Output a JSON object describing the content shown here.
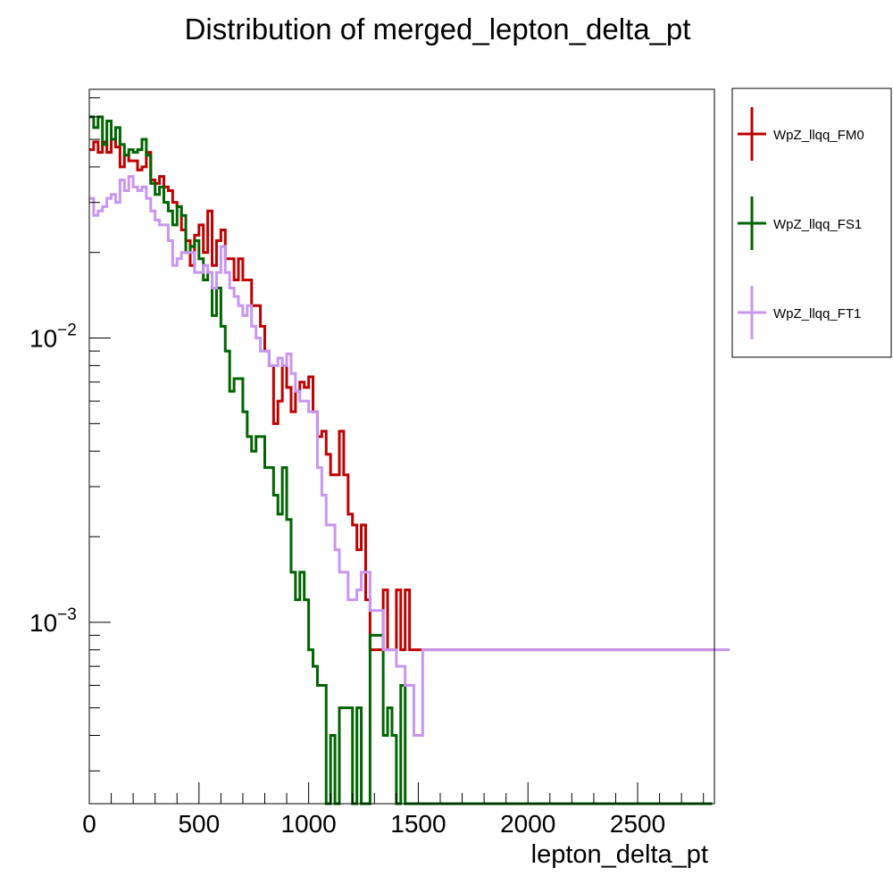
{
  "chart_data": {
    "type": "histogram",
    "title": "Distribution of merged_lepton_delta_pt",
    "xlabel": "lepton_delta_pt",
    "ylabel": "",
    "xlim": [
      0,
      2850
    ],
    "ylim": [
      0.00023,
      0.075
    ],
    "y_scale": "log",
    "grid": false,
    "legend_position": "right",
    "x_ticks": [
      0,
      500,
      1000,
      1500,
      2000,
      2500
    ],
    "x_tick_labels": [
      "0",
      "500",
      "1000",
      "1500",
      "2000",
      "2500"
    ],
    "y_ticks": [
      0.001,
      0.01
    ],
    "y_tick_labels": [
      {
        "base": "10",
        "exp": "−3"
      },
      {
        "base": "10",
        "exp": "−2"
      }
    ],
    "bin_width": 20,
    "series": [
      {
        "name": "WpZ_llqq_FM0",
        "color": "#c00000",
        "values": [
          0.046,
          0.049,
          0.045,
          0.049,
          0.045,
          0.05,
          0.047,
          0.04,
          0.044,
          0.042,
          0.042,
          0.039,
          0.04,
          0.045,
          0.036,
          0.035,
          0.037,
          0.034,
          0.033,
          0.03,
          0.029,
          0.024,
          0.022,
          0.018,
          0.023,
          0.025,
          0.02,
          0.028,
          0.018,
          0.022,
          0.024,
          0.019,
          0.019,
          0.016,
          0.019,
          0.016,
          0.016,
          0.013,
          0.013,
          0.011,
          0.009,
          0.008,
          0.005,
          0.006,
          0.008,
          0.0067,
          0.0055,
          0.0065,
          0.007,
          0.0067,
          0.0073,
          0.0055,
          0.0045,
          0.0047,
          0.0039,
          0.0033,
          0.0033,
          0.0047,
          0.0033,
          0.0024,
          0.0022,
          0.0018,
          0.0022,
          0.0012,
          0.0008,
          0.0008,
          0.0008,
          0.0013,
          0.0008,
          0.0008,
          0.0013,
          0.0008,
          0.0013,
          0.0008,
          0.0008,
          0.0008,
          0.0008,
          0.0008,
          0.0008,
          0.0008,
          0.0008,
          0.0008,
          0.0008,
          0.0008,
          0.0008,
          0.0008,
          0.0008,
          0.0008,
          0.0008,
          0.0008,
          0.0008,
          0.0008,
          0.0008,
          0.0008,
          0.0008,
          0.0008,
          0.0008,
          0.0008,
          0.0008,
          0.0008,
          0.0008,
          0.0008,
          0.0008,
          0.0008,
          0.0008,
          0.0008,
          0.0008,
          0.0008,
          0.0008,
          0.0008,
          0.0008,
          0.0008,
          0.0008,
          0.0008,
          0.0008,
          0.0008,
          0.0008,
          0.0008,
          0.0008,
          0.0008,
          0.0008,
          0.0008,
          0.0008,
          0.0008,
          0.0008,
          0.0008,
          0.0008,
          0.0008,
          0.0008,
          0.0008,
          0.0008,
          0.0008,
          0.0008,
          0.0008,
          0.0008,
          0.0008,
          0.0008,
          0.0008,
          0.0008,
          0.0008,
          0.0008,
          0.0008,
          0.0008
        ]
      },
      {
        "name": "WpZ_llqq_FS1",
        "color": "#006400",
        "values": [
          0.06,
          0.055,
          0.06,
          0.048,
          0.058,
          0.05,
          0.055,
          0.048,
          0.044,
          0.046,
          0.045,
          0.046,
          0.05,
          0.044,
          0.035,
          0.032,
          0.034,
          0.03,
          0.028,
          0.025,
          0.029,
          0.027,
          0.02,
          0.021,
          0.022,
          0.019,
          0.016,
          0.017,
          0.012,
          0.015,
          0.011,
          0.009,
          0.0065,
          0.0072,
          0.0072,
          0.0055,
          0.0045,
          0.004,
          0.0045,
          0.0045,
          0.0035,
          0.0035,
          0.0028,
          0.0024,
          0.0035,
          0.0023,
          0.0015,
          0.0012,
          0.0015,
          0.0012,
          0.0008,
          0.0007,
          0.0006,
          0.0006,
          0.00023,
          0.0004,
          0.00023,
          0.0005,
          0.0005,
          0.0005,
          0.00023,
          0.0005,
          0.00023,
          0.00023,
          0.0009,
          0.0009,
          0.0009,
          0.0004,
          0.0005,
          0.0004,
          0.00023,
          0.0006,
          0.00023,
          0.00023,
          0.00023,
          0.00023,
          0.00023,
          0.00023,
          0.00023,
          0.00023,
          0.00023,
          0.00023,
          0.00023,
          0.00023,
          0.00023,
          0.00023,
          0.00023,
          0.00023,
          0.00023,
          0.00023,
          0.00023,
          0.00023,
          0.00023,
          0.00023,
          0.00023,
          0.00023,
          0.00023,
          0.00023,
          0.00023,
          0.00023,
          0.00023,
          0.00023,
          0.00023,
          0.00023,
          0.00023,
          0.00023,
          0.00023,
          0.00023,
          0.00023,
          0.00023,
          0.00023,
          0.00023,
          0.00023,
          0.00023,
          0.00023,
          0.00023,
          0.00023,
          0.00023,
          0.00023,
          0.00023,
          0.00023,
          0.00023,
          0.00023,
          0.00023,
          0.00023,
          0.00023,
          0.00023,
          0.00023,
          0.00023,
          0.00023,
          0.00023,
          0.00023,
          0.00023,
          0.00023,
          0.00023,
          0.00023,
          0.00023,
          0.00023,
          0.00023,
          0.00023,
          0.00023,
          0.00023
        ]
      },
      {
        "name": "WpZ_llqq_FT1",
        "color": "#c896f0",
        "values": [
          0.031,
          0.027,
          0.028,
          0.029,
          0.031,
          0.032,
          0.03,
          0.036,
          0.033,
          0.037,
          0.034,
          0.033,
          0.034,
          0.031,
          0.028,
          0.026,
          0.025,
          0.025,
          0.022,
          0.018,
          0.019,
          0.02,
          0.02,
          0.02,
          0.017,
          0.017,
          0.018,
          0.017,
          0.015,
          0.017,
          0.021,
          0.017,
          0.015,
          0.014,
          0.013,
          0.012,
          0.013,
          0.011,
          0.01,
          0.009,
          0.009,
          0.008,
          0.008,
          0.0085,
          0.008,
          0.0088,
          0.0075,
          0.0065,
          0.006,
          0.006,
          0.0055,
          0.0055,
          0.0035,
          0.0028,
          0.0022,
          0.0022,
          0.0018,
          0.0015,
          0.0015,
          0.0012,
          0.0012,
          0.0013,
          0.0015,
          0.0015,
          0.0011,
          0.0011,
          0.0011,
          0.0008,
          0.0008,
          0.0008,
          0.0007,
          0.0007,
          0.0006,
          0.0006,
          0.0004,
          0.0004,
          0.0008,
          0.0008,
          0.0008,
          0.0008,
          0.0008,
          0.0008,
          0.0008,
          0.0008,
          0.0008,
          0.0008,
          0.0008,
          0.0008,
          0.0008,
          0.0008,
          0.0008,
          0.0008,
          0.0008,
          0.0008,
          0.0008,
          0.0008,
          0.0008,
          0.0008,
          0.0008,
          0.0008,
          0.0008,
          0.0008,
          0.0008,
          0.0008,
          0.0008,
          0.0008,
          0.0008,
          0.0008,
          0.0008,
          0.0008,
          0.0008,
          0.0008,
          0.0008,
          0.0008,
          0.0008,
          0.0008,
          0.0008,
          0.0008,
          0.0008,
          0.0008,
          0.0008,
          0.0008,
          0.0008,
          0.0008,
          0.0008,
          0.0008,
          0.0008,
          0.0008,
          0.0008,
          0.0008,
          0.0008,
          0.0008,
          0.0008,
          0.0008,
          0.0008,
          0.0008,
          0.0008,
          0.0008,
          0.0008,
          0.0008,
          0.0008,
          0.0008,
          0.0008,
          0.0008,
          0.0008,
          0.0008,
          0.0008
        ]
      }
    ]
  }
}
